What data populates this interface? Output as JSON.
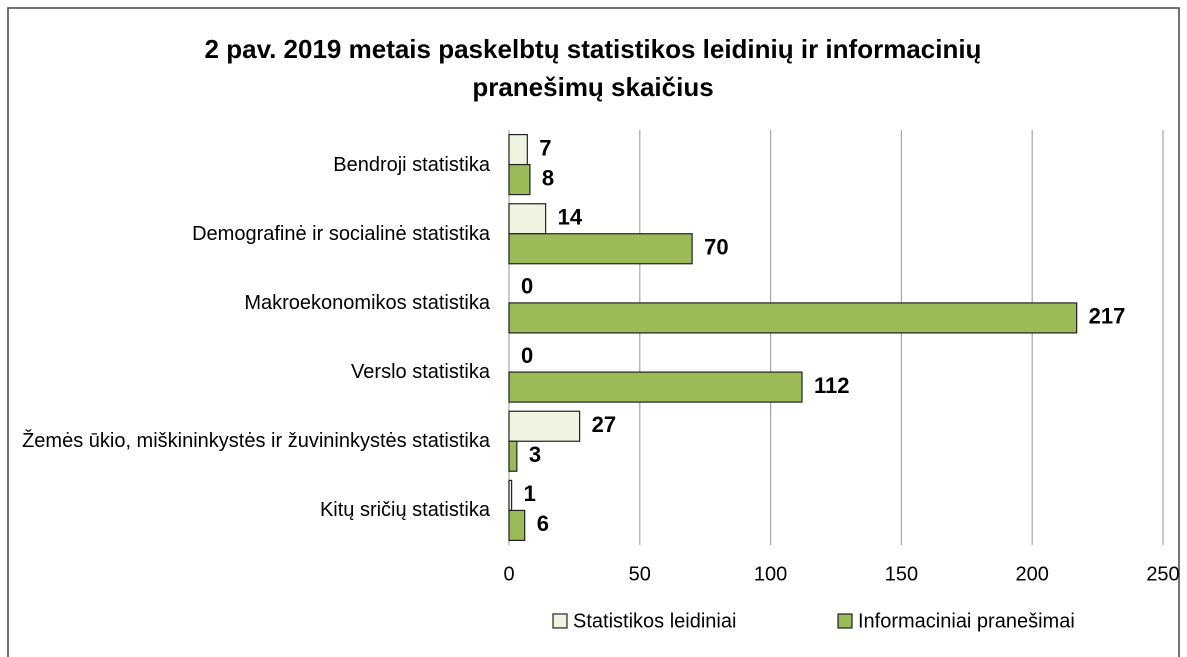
{
  "chart_data": {
    "type": "barh",
    "title": "2 pav. 2019 metais paskelbtų statistikos leidinių ir informacinių pranešimų skaičius",
    "categories": [
      "Bendroji statistika",
      "Demografinė ir socialinė statistika",
      "Makroekonomikos statistika",
      "Verslo statistika",
      "Žemės ūkio, miškininkystės ir žuvininkystės statistika",
      "Kitų sričių statistika"
    ],
    "series": [
      {
        "name": "Statistikos leidiniai",
        "color": "#eef3e2",
        "values": [
          7,
          14,
          0,
          0,
          27,
          1
        ]
      },
      {
        "name": "Informaciniai pranešimai",
        "color": "#9bbb59",
        "values": [
          8,
          70,
          217,
          112,
          3,
          6
        ]
      }
    ],
    "xlim": [
      0,
      250
    ],
    "xticks": [
      0,
      50,
      100,
      150,
      200,
      250
    ],
    "grid": true,
    "legend": "bottom"
  }
}
